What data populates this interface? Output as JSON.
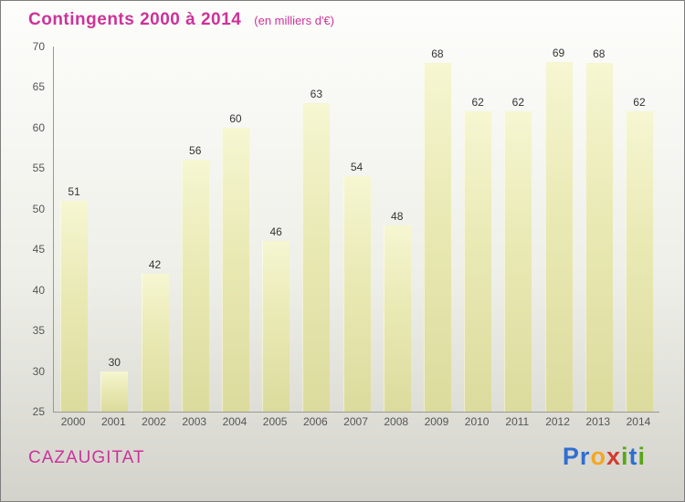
{
  "header": {
    "title": "Contingents 2000 à 2014",
    "subtitle": "(en milliers d'€)",
    "accent_color": "#cc3399"
  },
  "footer": {
    "location": "CAZAUGITAT",
    "logo_letters": [
      {
        "char": "P",
        "color": "#2f6fd0"
      },
      {
        "char": "r",
        "color": "#2f6fd0"
      },
      {
        "char": "o",
        "color": "#f5a623"
      },
      {
        "char": "x",
        "color": "#d23b2e"
      },
      {
        "char": "i",
        "color": "#58a618"
      },
      {
        "char": "t",
        "color": "#2f6fd0"
      },
      {
        "char": "i",
        "color": "#58a618"
      }
    ]
  },
  "chart_data": {
    "type": "bar",
    "title": "Contingents 2000 à 2014",
    "subtitle": "(en milliers d'€)",
    "categories": [
      "2000",
      "2001",
      "2002",
      "2003",
      "2004",
      "2005",
      "2006",
      "2007",
      "2008",
      "2009",
      "2010",
      "2011",
      "2012",
      "2013",
      "2014"
    ],
    "values": [
      51,
      30,
      42,
      56,
      60,
      46,
      63,
      54,
      48,
      68,
      62,
      62,
      69,
      68,
      62
    ],
    "xlabel": "",
    "ylabel": "",
    "ylim": [
      25,
      70
    ],
    "ytick_step": 5,
    "grid": false,
    "legend": false,
    "bar_color_top": "#f6f6d2",
    "bar_color_bottom": "#dcdb9d"
  }
}
